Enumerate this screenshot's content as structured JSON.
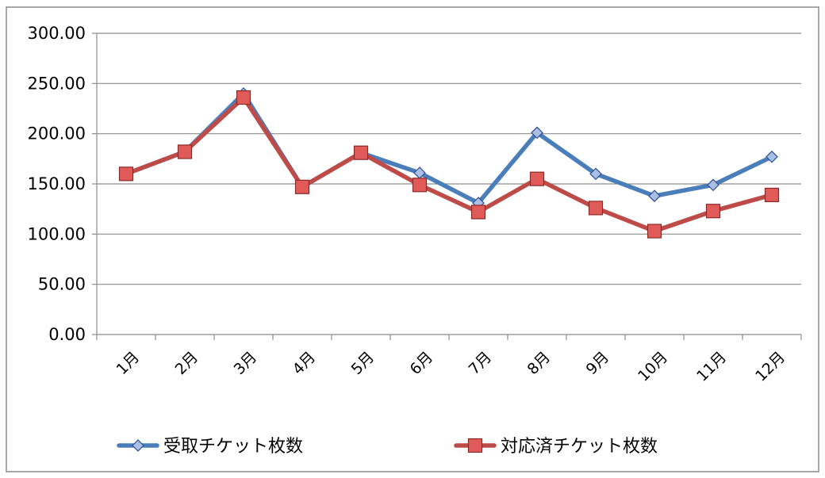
{
  "chart_data": {
    "type": "line",
    "title": "",
    "xlabel": "",
    "ylabel": "",
    "categories": [
      "1月",
      "2月",
      "3月",
      "4月",
      "5月",
      "6月",
      "7月",
      "8月",
      "9月",
      "10月",
      "11月",
      "12月"
    ],
    "y_ticks": [
      "0.00",
      "50.00",
      "100.00",
      "150.00",
      "200.00",
      "250.00",
      "300.00"
    ],
    "ylim": [
      0,
      300
    ],
    "grid": true,
    "legend_position": "bottom",
    "series": [
      {
        "name": "受取チケット枚数",
        "color": "#4a7ebb",
        "marker": "diamond",
        "marker_fill": "#a9bfe6",
        "values": [
          160,
          182,
          240,
          147,
          181,
          161,
          131,
          201,
          160,
          138,
          149,
          177
        ]
      },
      {
        "name": "対応済チケット枚数",
        "color": "#be4b48",
        "marker": "square",
        "marker_fill": "#e05a58",
        "values": [
          160,
          182,
          236,
          147,
          181,
          149,
          122,
          155,
          126,
          103,
          123,
          139
        ]
      }
    ]
  }
}
